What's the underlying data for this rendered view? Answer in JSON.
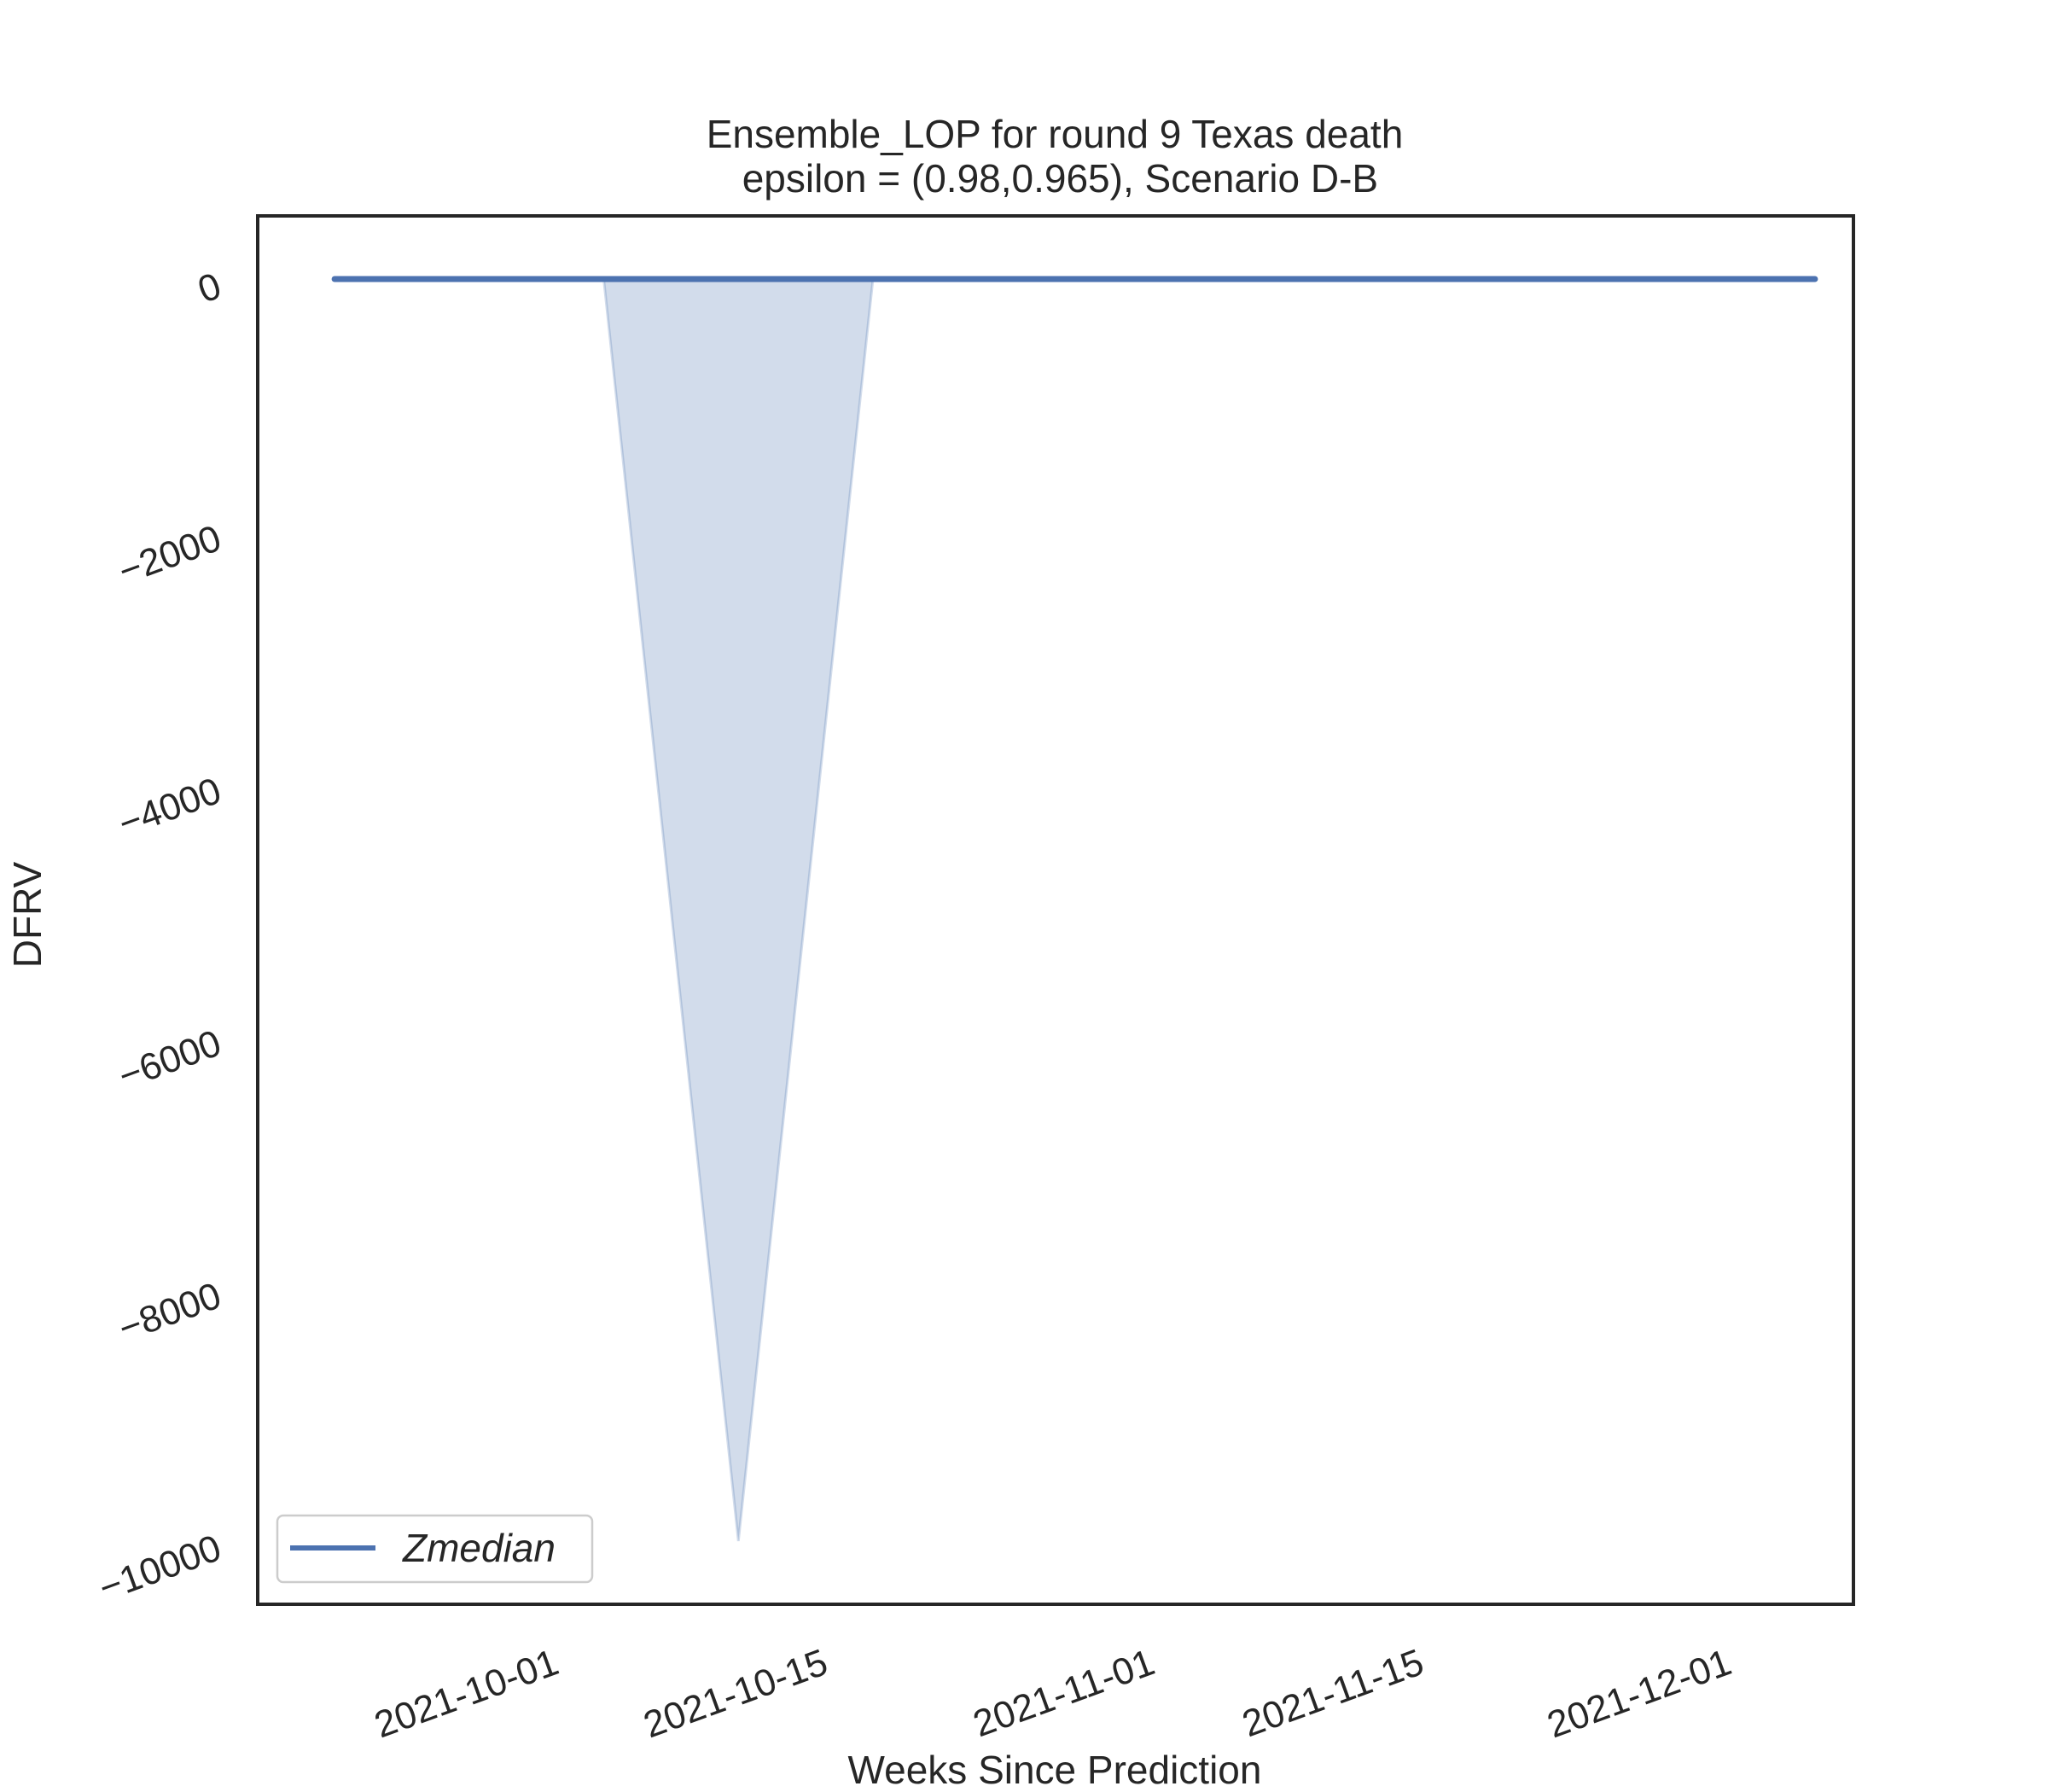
{
  "chart_data": {
    "type": "line",
    "title_line1": "Ensemble_LOP for round 9 Texas  death",
    "title_line2": " epsilon = (0.98,0.965), Scenario D-B",
    "xlabel": "Weeks Since Prediction",
    "ylabel": "DFRV",
    "x_tick_labels": [
      "2021-10-01",
      "2021-10-15",
      "2021-11-01",
      "2021-11-15",
      "2021-12-01"
    ],
    "x_ticks": [
      "2021-10-01",
      "2021-10-15",
      "2021-11-01",
      "2021-11-15",
      "2021-12-01"
    ],
    "y_tick_labels": [
      "0",
      "−2000",
      "−4000",
      "−6000",
      "−8000",
      "−10000"
    ],
    "y_ticks": [
      0,
      -2000,
      -4000,
      -6000,
      -8000,
      -10000
    ],
    "xlim": [
      "2021-09-17",
      "2021-12-09"
    ],
    "ylim": [
      -10500,
      500
    ],
    "series": [
      {
        "name": "Zmedian",
        "x": [
          "2021-09-21",
          "2021-09-28",
          "2021-10-05",
          "2021-10-12",
          "2021-10-19",
          "2021-10-26",
          "2021-11-02",
          "2021-11-09",
          "2021-11-16",
          "2021-11-23",
          "2021-11-30",
          "2021-12-07"
        ],
        "values": [
          0,
          0,
          0,
          0,
          0,
          0,
          0,
          0,
          0,
          0,
          0,
          0
        ],
        "color": "#4c72b0"
      }
    ],
    "band": {
      "x": [
        "2021-10-05",
        "2021-10-12",
        "2021-10-19"
      ],
      "lower": [
        0,
        -10000,
        0
      ],
      "upper": [
        0,
        0,
        0
      ],
      "color": "#4c72b0"
    },
    "legend_placement": "lower-left",
    "grid": false
  }
}
